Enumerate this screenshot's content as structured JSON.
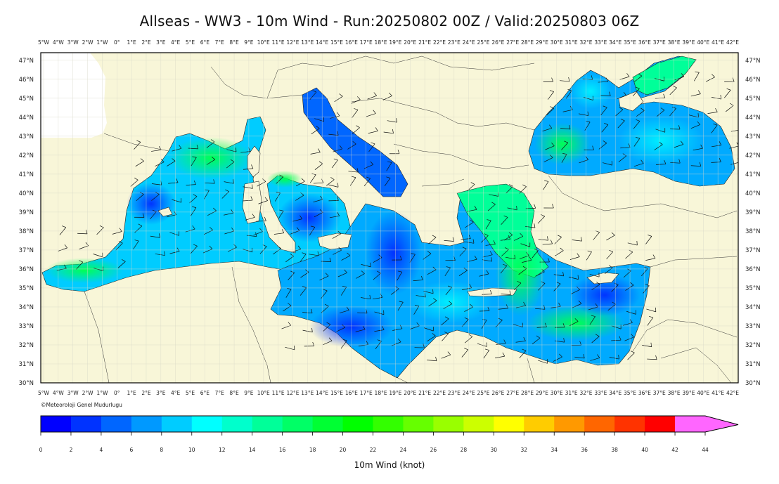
{
  "title": "Allseas - WW3 - 10m Wind - Run:20250802 00Z / Valid:20250803 06Z",
  "credit": "©Meteoroloji Genel Mudurlugu",
  "colorbar": {
    "label": "10m Wind (knot)",
    "ticks": [
      "0",
      "2",
      "4",
      "6",
      "8",
      "10",
      "12",
      "14",
      "16",
      "18",
      "20",
      "22",
      "24",
      "26",
      "28",
      "30",
      "32",
      "34",
      "36",
      "38",
      "40",
      "42",
      "44"
    ],
    "colors": [
      "#0000ff",
      "#0033ff",
      "#0066ff",
      "#0099ff",
      "#00ccff",
      "#00ffff",
      "#00ffcc",
      "#00ff99",
      "#00ff66",
      "#00ff33",
      "#00ff00",
      "#33ff00",
      "#66ff00",
      "#99ff00",
      "#ccff00",
      "#ffff00",
      "#ffcc00",
      "#ff9900",
      "#ff6600",
      "#ff3300",
      "#ff0000",
      "#ff66ff"
    ]
  },
  "map": {
    "lon_labels": [
      "5°W",
      "4°W",
      "3°W",
      "2°W",
      "1°W",
      "0°",
      "1°E",
      "2°E",
      "3°E",
      "4°E",
      "5°E",
      "6°E",
      "7°E",
      "8°E",
      "9°E",
      "10°E",
      "11°E",
      "12°E",
      "13°E",
      "14°E",
      "15°E",
      "16°E",
      "17°E",
      "18°E",
      "19°E",
      "20°E",
      "21°E",
      "22°E",
      "23°E",
      "24°E",
      "25°E",
      "26°E",
      "27°E",
      "28°E",
      "29°E",
      "30°E",
      "31°E",
      "32°E",
      "33°E",
      "34°E",
      "35°E",
      "36°E",
      "37°E",
      "38°E",
      "39°E",
      "40°E",
      "41°E",
      "42°E"
    ],
    "lat_labels": [
      "47°N",
      "46°N",
      "45°N",
      "44°N",
      "43°N",
      "42°N",
      "41°N",
      "40°N",
      "39°N",
      "38°N",
      "37°N",
      "36°N",
      "35°N",
      "34°N",
      "33°N",
      "32°N",
      "31°N",
      "30°N"
    ],
    "lon_range": [
      -5,
      42
    ],
    "lat_range": [
      30,
      47.4
    ],
    "land_color": "#f8f6d8",
    "grid_color": "#d8d8c8"
  }
}
